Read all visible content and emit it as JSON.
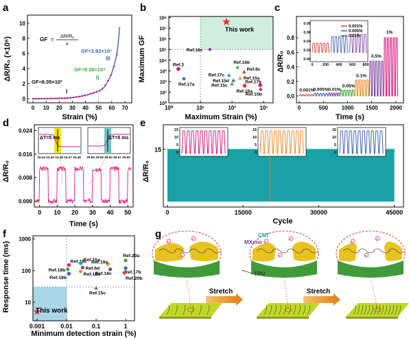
{
  "colors": {
    "pink": "#d81b7f",
    "blue": "#3f5fb0",
    "green": "#3aa83a",
    "orange": "#f08a2a",
    "purple": "#7b3fa0",
    "red": "#e23a2e",
    "teal": "#6cc9c7",
    "cyan": "#19a2a6",
    "yellow": "#f2e31a"
  },
  "panels": {
    "a": "a",
    "b": "b",
    "c": "c",
    "d": "d",
    "e": "e",
    "f": "f",
    "g": "g"
  },
  "chart_data": [
    {
      "panel": "a",
      "type": "line",
      "xlabel": "Strain (%)",
      "ylabel": "ΔR/R₀ (×10⁶)",
      "xlim": [
        0,
        70
      ],
      "ylim": [
        0,
        10
      ],
      "xticks": [
        "0",
        "10",
        "20",
        "30",
        "40",
        "50",
        "60",
        "70"
      ],
      "yticks": [
        "0",
        "2",
        "4",
        "6",
        "8",
        "10"
      ],
      "formula": "GF = (ΔR/R₀)/ε",
      "formula_parts": {
        "lhs": "GF",
        "num": "ΔR/R₀",
        "den": "ε"
      },
      "regions": [
        {
          "label": "I",
          "gf": "GF=8.05×10³"
        },
        {
          "label": "II",
          "gf": "GF=9.36×10⁴"
        },
        {
          "label": "III",
          "gf": "GF=3.92×10⁷"
        }
      ],
      "x": [
        0,
        5,
        10,
        15,
        20,
        25,
        30,
        35,
        40,
        45,
        50,
        52,
        54,
        56,
        58,
        60,
        62,
        64,
        65,
        66
      ],
      "y": [
        0,
        0.01,
        0.02,
        0.03,
        0.05,
        0.08,
        0.15,
        0.28,
        0.45,
        0.7,
        1.0,
        1.2,
        1.5,
        2.0,
        2.6,
        3.4,
        4.5,
        6.0,
        7.5,
        9.5
      ]
    },
    {
      "panel": "b",
      "type": "scatter",
      "scale": "log-log",
      "xlabel": "Maximum Strain (%)",
      "ylabel": "Maximum GF",
      "xticks": [
        "10⁰",
        "10¹",
        "10²",
        "10³"
      ],
      "yticks": [
        "10⁰",
        "10¹",
        "10²",
        "10³",
        "10⁴",
        "10⁵",
        "10⁶",
        "10⁷",
        "10⁸"
      ],
      "highlight_label": "This work",
      "points": [
        {
          "label": "This work",
          "x": 66,
          "y": 39200000,
          "color": "#e23a2e",
          "marker": "star"
        },
        {
          "label": "Ref.16c",
          "x": 20,
          "y": 100000,
          "color": "#7b3fa0",
          "marker": "diamond"
        },
        {
          "label": "Ref.3",
          "x": 2,
          "y": 1500,
          "color": "#d81b7f",
          "marker": "circle"
        },
        {
          "label": "Ref.17a",
          "x": 3,
          "y": 180,
          "color": "#3f5fb0",
          "marker": "diamond"
        },
        {
          "label": "Ref.16b",
          "x": 150,
          "y": 2200,
          "color": "#3aa83a",
          "marker": "triangle"
        },
        {
          "label": "Ref.6c",
          "x": 240,
          "y": 800,
          "color": "#e23a2e",
          "marker": "triangle"
        },
        {
          "label": "Ref.17c",
          "x": 80,
          "y": 400,
          "color": "#19a2a6",
          "marker": "triangle"
        },
        {
          "label": "Ref.15a",
          "x": 180,
          "y": 210,
          "color": "#f08a2a",
          "marker": "triangle"
        },
        {
          "label": "Ref.15d",
          "x": 110,
          "y": 130,
          "color": "#3f5fb0",
          "marker": "triangle"
        },
        {
          "label": "Ref.15c",
          "x": 100,
          "y": 60,
          "color": "#3aa83a",
          "marker": "triangle"
        },
        {
          "label": "Ref.16a",
          "x": 250,
          "y": 40,
          "color": "#e23a2e",
          "marker": "circle"
        },
        {
          "label": "Ref.17b",
          "x": 780,
          "y": 45,
          "color": "#d81b7f",
          "marker": "circle"
        },
        {
          "label": "Ref.15b",
          "x": 800,
          "y": 18,
          "color": "#7b3fa0",
          "marker": "diamond"
        }
      ]
    },
    {
      "panel": "c",
      "type": "line",
      "xlabel": "Time (s)",
      "ylabel": "ΔR/R₀",
      "xlim": [
        0,
        2100
      ],
      "ylim": [
        0,
        1.0
      ],
      "xticks": [
        "0",
        "500",
        "1000",
        "1500",
        "2000"
      ],
      "yticks": [
        "0.0",
        "0.2",
        "0.4",
        "0.6",
        "0.8"
      ],
      "series": [
        {
          "name": "0.001%",
          "amplitude": 0.02,
          "color": "#e23a2e"
        },
        {
          "name": "0.005%",
          "amplitude": 0.035,
          "color": "#3f5fb0"
        },
        {
          "name": "0.01%",
          "amplitude": 0.04,
          "color": "#7b3fa0"
        },
        {
          "name": "0.05%",
          "amplitude": 0.08,
          "color": "#3aa83a"
        },
        {
          "name": "0.1%",
          "amplitude": 0.22,
          "color": "#f08a2a"
        },
        {
          "name": "0.5%",
          "amplitude": 0.48,
          "color": "#7b3fa0"
        },
        {
          "name": "1%",
          "amplitude": 0.8,
          "color": "#d81b7f"
        }
      ],
      "inset": {
        "xticks": [
          "0",
          "200",
          "400",
          "600",
          "800"
        ],
        "yticks": [
          "0.00",
          "0.02",
          "0.04",
          "0.06",
          "0.08"
        ],
        "legend": [
          "0.001%",
          "0.005%",
          "0.01%"
        ]
      }
    },
    {
      "panel": "d",
      "type": "line",
      "xlabel": "Time (s)",
      "ylabel": "ΔR/R₀",
      "xlim": [
        -3,
        53
      ],
      "ylim": [
        -0.002,
        0.026
      ],
      "xticks": [
        "0",
        "10",
        "20",
        "30",
        "40",
        "50"
      ],
      "yticks": [
        "0.000",
        "0.008",
        "0.016",
        "0.024"
      ],
      "amplitude": 0.011,
      "color": "#d81b7f",
      "inset_left": {
        "annotation": "ΔT=5 ms",
        "xticks": [
          "24.44",
          "24.46",
          "24.48",
          "24.47",
          "24.48"
        ]
      },
      "inset_right": {
        "annotation": "ΔT=5 ms",
        "xticks": [
          "29.56",
          "29.58",
          "29.60",
          "29.57",
          "29.60"
        ]
      }
    },
    {
      "panel": "e",
      "type": "area",
      "xlabel": "Cycle",
      "ylabel": "ΔR/R₀",
      "xlim": [
        0,
        46000
      ],
      "ylim": [
        0,
        20
      ],
      "xticks": [
        "0",
        "15000",
        "30000",
        "45000"
      ],
      "yticks": [
        "15"
      ],
      "band_max": 15,
      "color": "#19a2a6",
      "insets": [
        {
          "color": "#d81b7f",
          "yticks": [
            "15",
            "10",
            "5",
            "0"
          ]
        },
        {
          "color": "#f08a2a",
          "yticks": [
            "15",
            "10",
            "5",
            "0"
          ]
        },
        {
          "color": "#3f5fb0",
          "yticks": [
            "15",
            "10",
            "5",
            "0"
          ]
        }
      ]
    },
    {
      "panel": "f",
      "type": "scatter",
      "scale": "log-log",
      "xlabel": "Minimum detection strain (%)",
      "ylabel": "Response time (ms)",
      "xticks": [
        "0.001",
        "0.01",
        "0.1",
        "1"
      ],
      "yticks": [
        "10",
        "100",
        "1000"
      ],
      "highlight_label": "This work",
      "points": [
        {
          "label": "This work",
          "x": 0.001,
          "y": 5,
          "color": "#e23a2e",
          "marker": "star"
        },
        {
          "label": "Ref.19c",
          "x": 0.012,
          "y": 150,
          "color": "#d81b7f",
          "marker": "circle"
        },
        {
          "label": "Ref.18b",
          "x": 0.011,
          "y": 110,
          "color": "#3aa83a",
          "marker": "circle"
        },
        {
          "label": "Ref.19b",
          "x": 0.012,
          "y": 80,
          "color": "#3f5fb0",
          "marker": "circle"
        },
        {
          "label": "Ref.15a",
          "x": 0.03,
          "y": 170,
          "color": "#19a2a6",
          "marker": "circle"
        },
        {
          "label": "Ref.6d",
          "x": 0.035,
          "y": 125,
          "color": "#7b3fa0",
          "marker": "circle"
        },
        {
          "label": "Ref.18a",
          "x": 0.03,
          "y": 95,
          "color": "#f08a2a",
          "marker": "circle"
        },
        {
          "label": "Ref.19a",
          "x": 0.25,
          "y": 160,
          "color": "#f08a2a",
          "marker": "circle"
        },
        {
          "label": "Ref.18c",
          "x": 0.3,
          "y": 110,
          "color": "#7b3fa0",
          "marker": "circle"
        },
        {
          "label": "Ref.20a",
          "x": 1,
          "y": 210,
          "color": "#3aa83a",
          "marker": "circle"
        },
        {
          "label": "Ref.17b",
          "x": 1,
          "y": 120,
          "color": "#3f5fb0",
          "marker": "circle"
        },
        {
          "label": "Ref.20b",
          "x": 0.9,
          "y": 85,
          "color": "#e23a2e",
          "marker": "circle"
        },
        {
          "label": "Ref.15c",
          "x": 0.1,
          "y": 28,
          "color": "#3f5fb0",
          "marker": "triangle"
        }
      ]
    }
  ],
  "schematic_g": {
    "labels": {
      "cnt": "CNT",
      "mxene": "MXene",
      "tpu": "TPU",
      "electron": "e⁻"
    },
    "steps": [
      "Stretch",
      "Stretch"
    ]
  }
}
